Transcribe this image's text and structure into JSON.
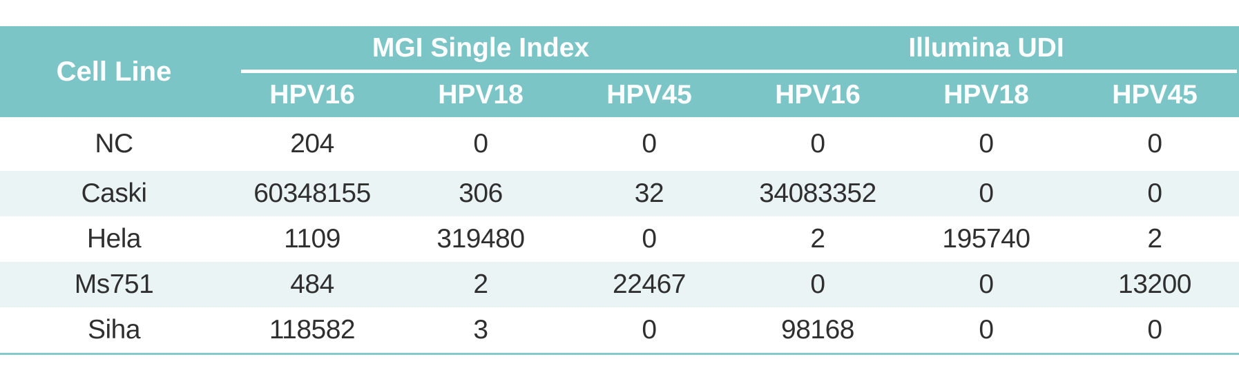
{
  "chart_data": {
    "type": "table",
    "corner_header": "Cell Line",
    "column_groups": [
      {
        "label": "MGI Single Index",
        "columns": [
          "HPV16",
          "HPV18",
          "HPV45"
        ]
      },
      {
        "label": "Illumina UDI",
        "columns": [
          "HPV16",
          "HPV18",
          "HPV45"
        ]
      }
    ],
    "sub_headers": [
      "HPV16",
      "HPV18",
      "HPV45",
      "HPV16",
      "HPV18",
      "HPV45"
    ],
    "rows": [
      {
        "label": "NC",
        "values": [
          204,
          0,
          0,
          0,
          0,
          0
        ]
      },
      {
        "label": "Caski",
        "values": [
          60348155,
          306,
          32,
          34083352,
          0,
          0
        ]
      },
      {
        "label": "Hela",
        "values": [
          1109,
          319480,
          0,
          2,
          195740,
          2
        ]
      },
      {
        "label": "Ms751",
        "values": [
          484,
          2,
          22467,
          0,
          0,
          13200
        ]
      },
      {
        "label": "Siha",
        "values": [
          118582,
          3,
          0,
          98168,
          0,
          0
        ]
      }
    ],
    "colors": {
      "header_bg": "#7cc5c7",
      "header_text": "#ffffff",
      "row_alt_bg": "#ebf4f5",
      "body_text": "#2f2f2f",
      "bottom_border": "#84c9cb",
      "group_underline": "#ffffff"
    },
    "layout": {
      "grid": "off",
      "zebra_striping": true,
      "header_tiers": 2
    }
  }
}
